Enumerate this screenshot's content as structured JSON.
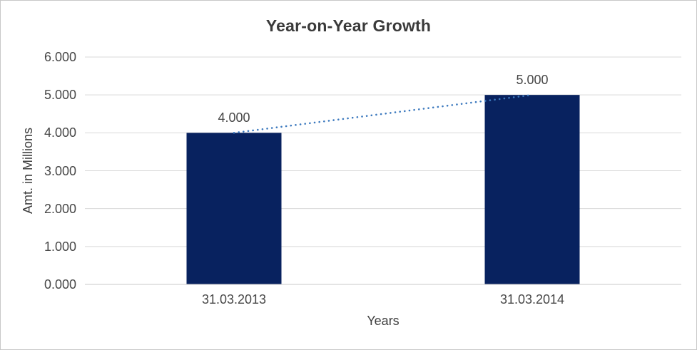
{
  "window": {
    "background": "#FFFFFF",
    "border_color": "#C8C8C8"
  },
  "chart_data": {
    "type": "bar",
    "title": "Year-on-Year Growth",
    "xlabel": "Years",
    "ylabel": "Amt. in Millions",
    "categories": [
      "31.03.2013",
      "31.03.2014"
    ],
    "values": [
      4.0,
      5.0
    ],
    "data_labels": [
      "4.000",
      "5.000"
    ],
    "y_ticks": [
      "0.000",
      "1.000",
      "2.000",
      "3.000",
      "4.000",
      "5.000",
      "6.000"
    ],
    "ylim": [
      0,
      6
    ],
    "grid": "horizontal",
    "legend": "none",
    "trendline": {
      "type": "linear",
      "style": "dotted",
      "from": 4.0,
      "to": 5.0
    },
    "colors": {
      "bar": "#08225F",
      "trendline": "#3C79BE",
      "gridline": "#D9D9D9",
      "axis_line": "#D3D3D3",
      "tick_text": "#474747",
      "axis_title_text": "#3F3F3F",
      "title_text": "#3A3A3A"
    }
  }
}
